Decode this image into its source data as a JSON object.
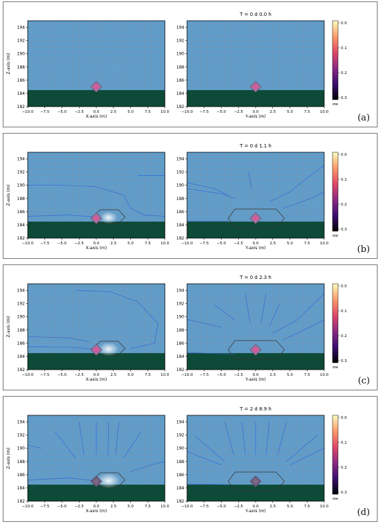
{
  "figure": {
    "panels": [
      {
        "id": "a",
        "label": "(a)",
        "title": "T = 0 d  0.0 h",
        "stage": 0
      },
      {
        "id": "b",
        "label": "(b)",
        "title": "T = 0 d  1.1 h",
        "stage": 1
      },
      {
        "id": "c",
        "label": "(c)",
        "title": "T = 0 d  2.3 h",
        "stage": 2
      },
      {
        "id": "d",
        "label": "(d)",
        "title": "T = 2 d  8.9 h",
        "stage": 3
      }
    ],
    "left_xlabel": "X-axis (m)",
    "right_xlabel": "Y-axis (m)",
    "ylabel": "Z-axis (m)",
    "colorbar_label": "σw",
    "colors": {
      "water": "#5b9fd0",
      "grid": "#c27a5a",
      "bedrock": "#0e4a38",
      "streamline": "#2f5fd6",
      "pipe_outline": "#333333"
    }
  },
  "chart_data": {
    "type": "heatmap",
    "xlim": [
      -10,
      10
    ],
    "ylim": [
      182,
      195
    ],
    "x_ticks": [
      -10.0,
      -7.5,
      -5.0,
      -2.5,
      0.0,
      2.5,
      5.0,
      7.5,
      10.0
    ],
    "x_tick_labels": [
      "−10.0",
      "−7.5",
      "−5.0",
      "−2.5",
      "0.0",
      "2.5",
      "5.0",
      "7.5",
      "10.0"
    ],
    "y_ticks": [
      182,
      184,
      186,
      188,
      190,
      192,
      194
    ],
    "bedrock_top_z": 184.5,
    "source_center": {
      "x": 0,
      "z": 185
    },
    "colorbar": {
      "ticks": [
        0.0,
        0.1,
        0.2,
        0.3
      ],
      "tick_labels": [
        "0.0",
        "0.1",
        "0.2",
        "0.3"
      ],
      "range": [
        0,
        0.3
      ]
    }
  }
}
